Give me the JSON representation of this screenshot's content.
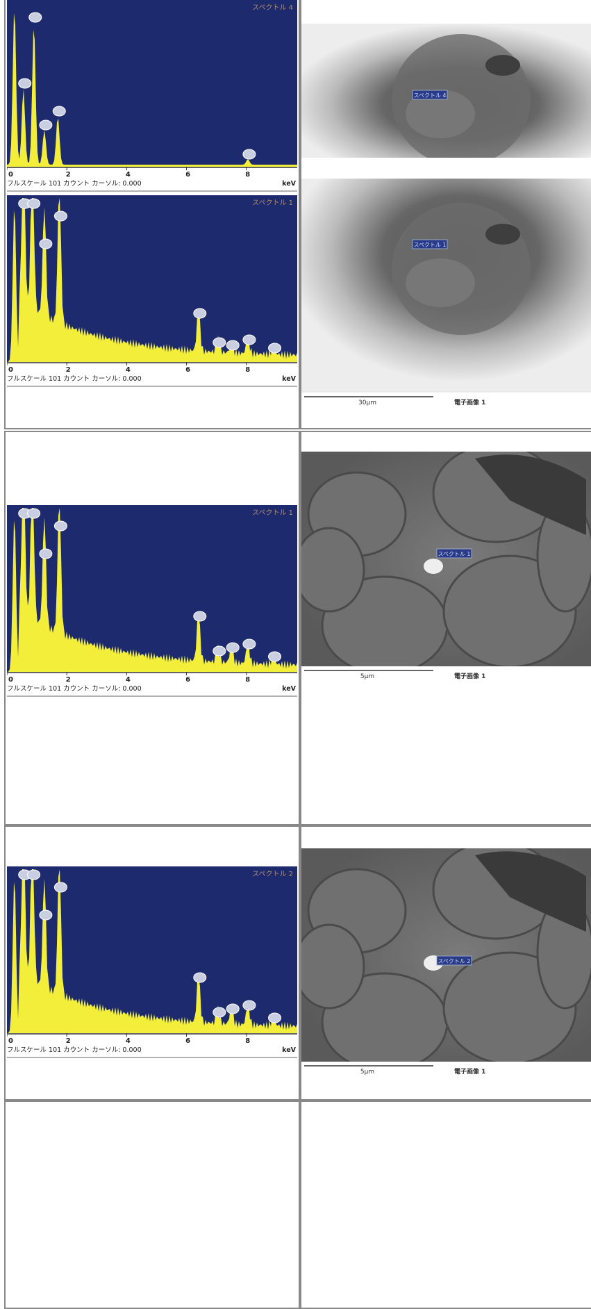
{
  "spectra": [
    {
      "title": "スペクトル 4",
      "ticks": [
        "0",
        "2",
        "4",
        "6",
        "8"
      ],
      "footer": "フルスケール 101 カウント カーソル: 0.000",
      "unit": "keV"
    },
    {
      "title": "スペクトル 1",
      "ticks": [
        "0",
        "2",
        "4",
        "6",
        "8"
      ],
      "footer": "フルスケール 101 カウント カーソル: 0.000",
      "unit": "keV"
    },
    {
      "title": "スペクトル 1",
      "ticks": [
        "0",
        "2",
        "4",
        "6",
        "8"
      ],
      "footer": "フルスケール 101 カウント カーソル: 0.000",
      "unit": "keV"
    },
    {
      "title": "スペクトル 2",
      "ticks": [
        "0",
        "2",
        "4",
        "6",
        "8"
      ],
      "footer": "フルスケール 101 カウント カーソル: 0.000",
      "unit": "keV"
    }
  ],
  "sem_images": [
    {
      "label": "スペクトル 4"
    },
    {
      "label": "スペクトル 1",
      "scale": "30μm",
      "caption": "電子画像 1"
    },
    {
      "label": "スペクトル 1",
      "scale": "5μm",
      "caption": "電子画像 1"
    },
    {
      "label": "スペクトル 2",
      "scale": "5μm",
      "caption": "電子画像 1"
    }
  ]
}
